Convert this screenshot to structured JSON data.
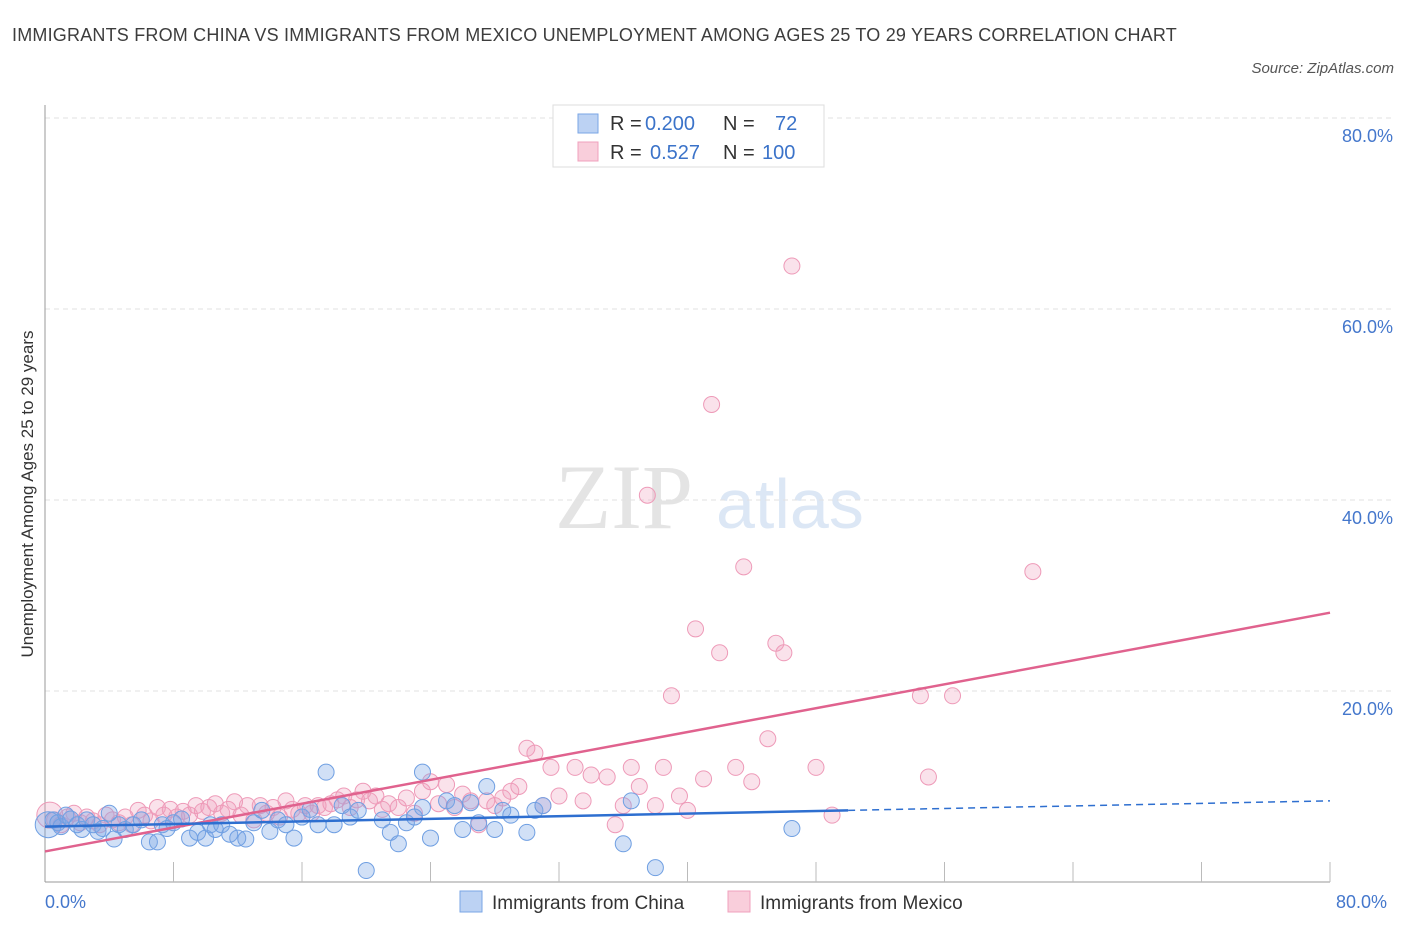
{
  "title": "IMMIGRANTS FROM CHINA VS IMMIGRANTS FROM MEXICO UNEMPLOYMENT AMONG AGES 25 TO 29 YEARS CORRELATION CHART",
  "source": "Source: ZipAtlas.com",
  "watermark": {
    "zip": "ZIP",
    "atlas": "atlas"
  },
  "legend": {
    "china": {
      "r_label": "R =",
      "r_value": "0.200",
      "n_label": "N =",
      "n_value": "72"
    },
    "mexico": {
      "r_label": "R =",
      "r_value": "0.527",
      "n_label": "N =",
      "n_value": "100"
    }
  },
  "chart_data": {
    "type": "scatter",
    "xlabel": "",
    "ylabel": "Unemployment Among Ages 25 to 29 years",
    "xlim": [
      0,
      80
    ],
    "ylim": [
      0,
      80
    ],
    "x_tick_labels": [
      "0.0%",
      "80.0%"
    ],
    "y_tick_labels": [
      "20.0%",
      "40.0%",
      "60.0%",
      "80.0%"
    ],
    "y_ticks": [
      20,
      40,
      60,
      80
    ],
    "colors": {
      "china": "#7aa6e6",
      "mexico": "#f0a0bc",
      "china_line": "#2e6fd0",
      "mexico_line": "#e0628e"
    },
    "series": [
      {
        "name": "Immigrants from China",
        "trend": {
          "x0": 0,
          "y0": 5.8,
          "x1": 50,
          "y1": 7.5,
          "dash_x1": 80,
          "dash_y1": 8.5
        },
        "points": [
          [
            0.2,
            6
          ],
          [
            0.5,
            6.5
          ],
          [
            0.8,
            6.2
          ],
          [
            1,
            5.8
          ],
          [
            1.3,
            7
          ],
          [
            1.6,
            6.6
          ],
          [
            2,
            6
          ],
          [
            2.3,
            5.5
          ],
          [
            2.6,
            6.5
          ],
          [
            3,
            6
          ],
          [
            3.3,
            5.3
          ],
          [
            3.6,
            5.6
          ],
          [
            4,
            7.2
          ],
          [
            4.3,
            4.5
          ],
          [
            4.6,
            6
          ],
          [
            5,
            5.5
          ],
          [
            5.5,
            6
          ],
          [
            6,
            6.5
          ],
          [
            6.5,
            4.2
          ],
          [
            7,
            4.2
          ],
          [
            7.3,
            6
          ],
          [
            7.6,
            5.6
          ],
          [
            8,
            6.2
          ],
          [
            8.5,
            6.6
          ],
          [
            9,
            4.6
          ],
          [
            9.5,
            5.2
          ],
          [
            10,
            4.6
          ],
          [
            10.3,
            6
          ],
          [
            10.6,
            5.5
          ],
          [
            11,
            6
          ],
          [
            11.5,
            5
          ],
          [
            12,
            4.6
          ],
          [
            12.5,
            4.5
          ],
          [
            13,
            6.2
          ],
          [
            13.5,
            7.5
          ],
          [
            14,
            5.3
          ],
          [
            14.5,
            6.5
          ],
          [
            15,
            6
          ],
          [
            15.5,
            4.6
          ],
          [
            16,
            6.8
          ],
          [
            16.5,
            7.6
          ],
          [
            17,
            6
          ],
          [
            17.5,
            11.5
          ],
          [
            18,
            6
          ],
          [
            18.5,
            8
          ],
          [
            19,
            6.8
          ],
          [
            19.5,
            7.5
          ],
          [
            20,
            1.2
          ],
          [
            21,
            6.5
          ],
          [
            21.5,
            5.2
          ],
          [
            22,
            4
          ],
          [
            22.5,
            6.2
          ],
          [
            23,
            6.8
          ],
          [
            23.5,
            7.8
          ],
          [
            24,
            4.6
          ],
          [
            23.5,
            11.5
          ],
          [
            25,
            8.5
          ],
          [
            25.5,
            8
          ],
          [
            26,
            5.5
          ],
          [
            26.5,
            8.3
          ],
          [
            27,
            6.2
          ],
          [
            27.5,
            10
          ],
          [
            28,
            5.5
          ],
          [
            28.5,
            7.5
          ],
          [
            29,
            7
          ],
          [
            30,
            5.2
          ],
          [
            30.5,
            7.5
          ],
          [
            31,
            8
          ],
          [
            36,
            4
          ],
          [
            36.5,
            8.5
          ],
          [
            38,
            1.5
          ],
          [
            46.5,
            5.6
          ]
        ]
      },
      {
        "name": "Immigrants from Mexico",
        "trend": {
          "x0": 0,
          "y0": 3.2,
          "x1": 80,
          "y1": 28.2
        },
        "points": [
          [
            0.3,
            7
          ],
          [
            0.6,
            6.5
          ],
          [
            1,
            6
          ],
          [
            1.4,
            6.8
          ],
          [
            1.8,
            7.2
          ],
          [
            2.2,
            6.2
          ],
          [
            2.6,
            6.8
          ],
          [
            3,
            6.4
          ],
          [
            3.4,
            6
          ],
          [
            3.8,
            7
          ],
          [
            4.2,
            6.5
          ],
          [
            4.6,
            6.2
          ],
          [
            5,
            6.8
          ],
          [
            5.4,
            6
          ],
          [
            5.8,
            7.5
          ],
          [
            6.2,
            7
          ],
          [
            6.6,
            6.4
          ],
          [
            7,
            7.8
          ],
          [
            7.4,
            7
          ],
          [
            7.8,
            7.6
          ],
          [
            8.2,
            6.8
          ],
          [
            8.6,
            7.4
          ],
          [
            9,
            7
          ],
          [
            9.4,
            8
          ],
          [
            9.8,
            7.4
          ],
          [
            10.2,
            7.8
          ],
          [
            10.6,
            8.2
          ],
          [
            11,
            7.2
          ],
          [
            11.4,
            7.6
          ],
          [
            11.8,
            8.4
          ],
          [
            12.2,
            7
          ],
          [
            12.6,
            8
          ],
          [
            13,
            6.5
          ],
          [
            13.4,
            8
          ],
          [
            13.8,
            7.2
          ],
          [
            14.2,
            7.8
          ],
          [
            14.6,
            6.8
          ],
          [
            15,
            8.5
          ],
          [
            15.4,
            7.6
          ],
          [
            15.8,
            7.2
          ],
          [
            16.2,
            8
          ],
          [
            16.6,
            7.2
          ],
          [
            17,
            8
          ],
          [
            17.4,
            7.8
          ],
          [
            17.8,
            8.2
          ],
          [
            18.2,
            8.6
          ],
          [
            18.6,
            9
          ],
          [
            19,
            7.8
          ],
          [
            19.4,
            8.6
          ],
          [
            19.8,
            9.5
          ],
          [
            20.2,
            8.5
          ],
          [
            20.6,
            9
          ],
          [
            21,
            7.6
          ],
          [
            21.4,
            8.2
          ],
          [
            22,
            7.8
          ],
          [
            22.5,
            8.8
          ],
          [
            23,
            7.2
          ],
          [
            23.5,
            9.5
          ],
          [
            24,
            10.5
          ],
          [
            24.5,
            8.2
          ],
          [
            25,
            10.2
          ],
          [
            25.5,
            7.8
          ],
          [
            26,
            9.2
          ],
          [
            26.5,
            8.5
          ],
          [
            27,
            6
          ],
          [
            27.5,
            8.5
          ],
          [
            28,
            8
          ],
          [
            28.5,
            8.8
          ],
          [
            29,
            9.5
          ],
          [
            29.5,
            10
          ],
          [
            30,
            14
          ],
          [
            30.5,
            13.5
          ],
          [
            31,
            8
          ],
          [
            31.5,
            12
          ],
          [
            32,
            9
          ],
          [
            33,
            12
          ],
          [
            33.5,
            8.5
          ],
          [
            34,
            11.2
          ],
          [
            35,
            11
          ],
          [
            35.5,
            6
          ],
          [
            36,
            8
          ],
          [
            36.5,
            12
          ],
          [
            37,
            10
          ],
          [
            37.5,
            40.5
          ],
          [
            38,
            8
          ],
          [
            38.5,
            12
          ],
          [
            39,
            19.5
          ],
          [
            39.5,
            9
          ],
          [
            40,
            7.5
          ],
          [
            40.5,
            26.5
          ],
          [
            41,
            10.8
          ],
          [
            41.5,
            50
          ],
          [
            42,
            24
          ],
          [
            43,
            12
          ],
          [
            43.5,
            33
          ],
          [
            44,
            10.5
          ],
          [
            45,
            15
          ],
          [
            45.5,
            25
          ],
          [
            46,
            24
          ],
          [
            46.5,
            64.5
          ],
          [
            48,
            12
          ],
          [
            49,
            7
          ],
          [
            54.5,
            19.5
          ],
          [
            55,
            11
          ],
          [
            56.5,
            19.5
          ],
          [
            61.5,
            32.5
          ]
        ]
      }
    ]
  }
}
